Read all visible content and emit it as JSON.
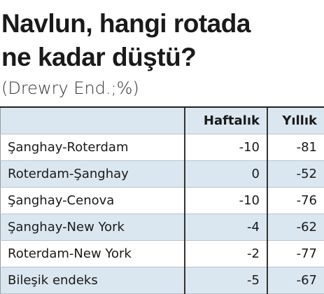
{
  "header": {
    "title_lines": [
      "Navlun, hangi rotada",
      "ne kadar düştü?"
    ],
    "subtitle": "(Drewry End.;%)"
  },
  "table": {
    "columns": [
      "Haftalık",
      "Yıllık"
    ],
    "rows": [
      [
        "Şanghay-Roterdam",
        -10,
        -81
      ],
      [
        "Roterdam-Şanghay",
        0,
        -52
      ],
      [
        "Şanghay-Cenova",
        -10,
        -76
      ],
      [
        "Şanghay-New York",
        -4,
        -62
      ],
      [
        "Roterdam-New York",
        -2,
        -77
      ],
      [
        "Bileşik endeks",
        -5,
        -67
      ]
    ]
  }
}
